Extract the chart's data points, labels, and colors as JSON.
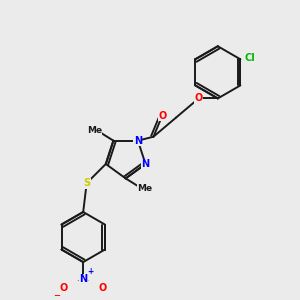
{
  "bg_color": "#ebebeb",
  "bond_color": "#1a1a1a",
  "colors": {
    "N": "#0000ff",
    "O": "#ff0000",
    "S": "#cccc00",
    "Cl": "#00bb00",
    "C": "#1a1a1a"
  },
  "lw": 1.4,
  "fs": 7.0
}
